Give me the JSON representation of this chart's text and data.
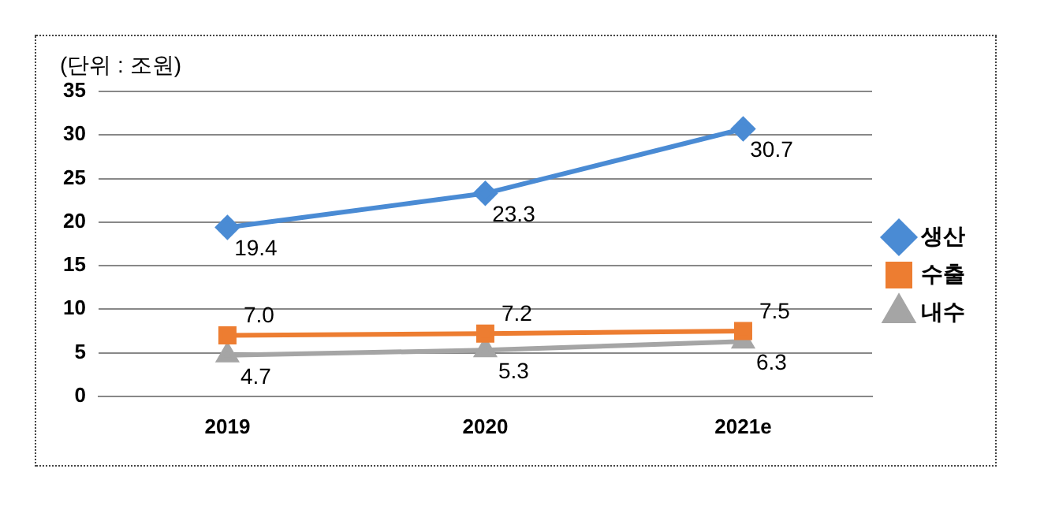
{
  "chart_data": {
    "type": "line",
    "subtitle": "(단위 : 조원)",
    "categories": [
      "2019",
      "2020",
      "2021e"
    ],
    "series": [
      {
        "name": "생산",
        "color": "#4a8bd4",
        "values": [
          19.4,
          23.3,
          30.7
        ],
        "value_labels": [
          "19.4",
          "23.3",
          "30.7"
        ],
        "marker": "diamond"
      },
      {
        "name": "수출",
        "color": "#ed7d31",
        "values": [
          7.0,
          7.2,
          7.5
        ],
        "value_labels": [
          "7.0",
          "7.2",
          "7.5"
        ],
        "marker": "square"
      },
      {
        "name": "내수",
        "color": "#a5a5a5",
        "values": [
          4.7,
          5.3,
          6.3
        ],
        "value_labels": [
          "4.7",
          "5.3",
          "6.3"
        ],
        "marker": "triangle"
      }
    ],
    "ylim": [
      0,
      35
    ],
    "yticks": [
      0,
      5,
      10,
      15,
      20,
      25,
      30,
      35
    ],
    "grid": "y",
    "legend": "right"
  }
}
